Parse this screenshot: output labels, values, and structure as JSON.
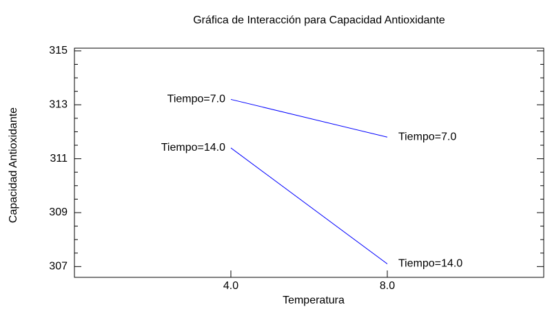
{
  "chart_data": {
    "type": "line",
    "title": "Gráfica de Interacción para Capacidad Antioxidante",
    "xlabel": "Temperatura",
    "ylabel": "Capacidad Antioxidante",
    "x": [
      4,
      8
    ],
    "series": [
      {
        "name": "Tiempo=7.0",
        "color": "#0000ff",
        "values": [
          313.2,
          311.8
        ]
      },
      {
        "name": "Tiempo=14.0",
        "color": "#0000ff",
        "values": [
          311.4,
          307.1
        ]
      }
    ],
    "xlim": [
      0,
      12
    ],
    "xticks": [
      {
        "value": 4,
        "label": "4.0"
      },
      {
        "value": 8,
        "label": "8.0"
      }
    ],
    "ylim": [
      306.6,
      315.1
    ],
    "yticks": [
      307,
      309,
      311,
      313,
      315
    ],
    "yticks_minor": [
      307.5,
      308,
      308.5,
      309.5,
      310,
      310.5,
      311.5,
      312,
      312.5,
      313.5,
      314,
      314.5
    ],
    "grid": false
  }
}
